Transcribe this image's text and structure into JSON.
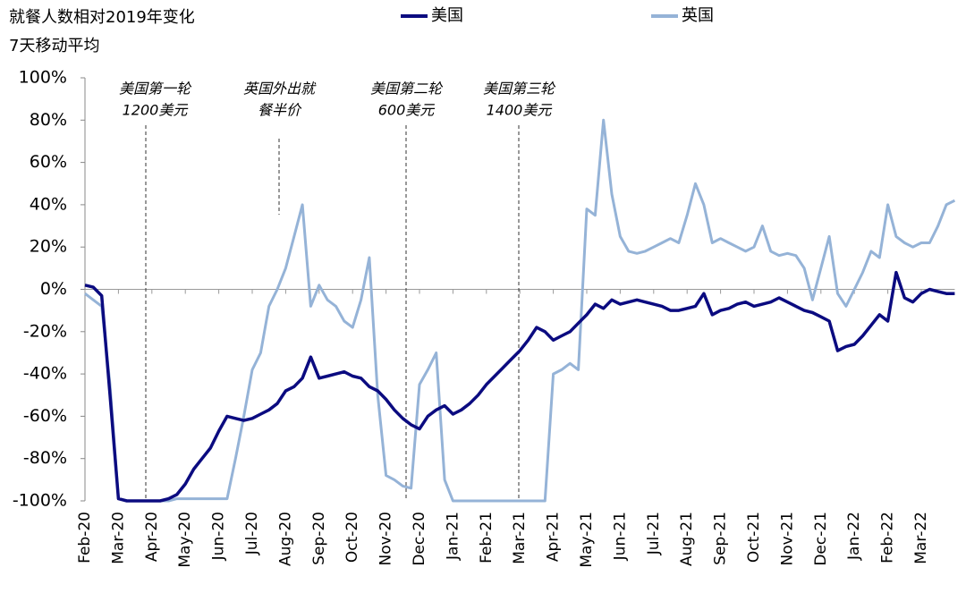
{
  "chart_data": {
    "type": "line",
    "title": "就餐人数相对2019年变化",
    "subtitle": "7天移动平均",
    "categories": [
      "Feb-20",
      null,
      null,
      null,
      "Mar-20",
      null,
      null,
      null,
      "Apr-20",
      null,
      null,
      null,
      "May-20",
      null,
      null,
      null,
      "Jun-20",
      null,
      null,
      null,
      "Jul-20",
      null,
      null,
      null,
      "Aug-20",
      null,
      null,
      null,
      "Sep-20",
      null,
      null,
      null,
      "Oct-20",
      null,
      null,
      null,
      "Nov-20",
      null,
      null,
      null,
      "Dec-20",
      null,
      null,
      null,
      "Jan-21",
      null,
      null,
      null,
      "Feb-21",
      null,
      null,
      null,
      "Mar-21",
      null,
      null,
      null,
      "Apr-21",
      null,
      null,
      null,
      "May-21",
      null,
      null,
      null,
      "Jun-21",
      null,
      null,
      null,
      "Jul-21",
      null,
      null,
      null,
      "Aug-21",
      null,
      null,
      null,
      "Sep-21",
      null,
      null,
      null,
      "Oct-21",
      null,
      null,
      null,
      "Nov-21",
      null,
      null,
      null,
      "Dec-21",
      null,
      null,
      null,
      "Jan-22",
      null,
      null,
      null,
      "Feb-22",
      null,
      null,
      null,
      "Mar-22",
      null,
      null,
      null,
      null
    ],
    "series": [
      {
        "name": "美国",
        "color": "#0b0b80",
        "width": 3.5,
        "values": [
          2,
          1,
          -3,
          -50,
          -99,
          -100,
          -100,
          -100,
          -100,
          -100,
          -99,
          -97,
          -92,
          -85,
          -80,
          -75,
          -67,
          -60,
          -61,
          -62,
          -61,
          -59,
          -57,
          -54,
          -48,
          -46,
          -42,
          -32,
          -42,
          -41,
          -40,
          -39,
          -41,
          -42,
          -46,
          -48,
          -52,
          -57,
          -61,
          -64,
          -66,
          -60,
          -57,
          -55,
          -59,
          -57,
          -54,
          -50,
          -45,
          -41,
          -37,
          -33,
          -29,
          -24,
          -18,
          -20,
          -24,
          -22,
          -20,
          -16,
          -12,
          -7,
          -9,
          -5,
          -7,
          -6,
          -5,
          -6,
          -7,
          -8,
          -10,
          -10,
          -9,
          -8,
          -2,
          -12,
          -10,
          -9,
          -7,
          -6,
          -8,
          -7,
          -6,
          -4,
          -6,
          -8,
          -10,
          -11,
          -13,
          -15,
          -29,
          -27,
          -26,
          -22,
          -17,
          -12,
          -15,
          8,
          -4,
          -6,
          -2,
          0,
          -1,
          -2,
          -2
        ]
      },
      {
        "name": "英国",
        "color": "#95b3d7",
        "width": 3,
        "values": [
          -2,
          -5,
          -8,
          -45,
          -99,
          -100,
          -100,
          -100,
          -100,
          -100,
          -100,
          -99,
          -99,
          -99,
          -99,
          -99,
          -99,
          -99,
          -80,
          -60,
          -38,
          -30,
          -8,
          0,
          10,
          25,
          40,
          -8,
          2,
          -5,
          -8,
          -15,
          -18,
          -5,
          15,
          -50,
          -88,
          -90,
          -93,
          -94,
          -45,
          -38,
          -30,
          -90,
          -100,
          -100,
          -100,
          -100,
          -100,
          -100,
          -100,
          -100,
          -100,
          -100,
          -100,
          -100,
          -40,
          -38,
          -35,
          -38,
          38,
          35,
          80,
          45,
          25,
          18,
          17,
          18,
          20,
          22,
          24,
          22,
          35,
          50,
          40,
          22,
          24,
          22,
          20,
          18,
          20,
          30,
          18,
          16,
          17,
          16,
          10,
          -5,
          10,
          25,
          -2,
          -8,
          0,
          8,
          18,
          15,
          40,
          25,
          22,
          20,
          22,
          22,
          30,
          40,
          42
        ]
      }
    ],
    "ylim": [
      -100,
      100
    ],
    "yticks": [
      {
        "value": -100,
        "label": "-100%"
      },
      {
        "value": -80,
        "label": "-80%"
      },
      {
        "value": -60,
        "label": "-60%"
      },
      {
        "value": -40,
        "label": "-40%"
      },
      {
        "value": -20,
        "label": "-20%"
      },
      {
        "value": 0,
        "label": "0%"
      },
      {
        "value": 20,
        "label": "20%"
      },
      {
        "value": 40,
        "label": "40%"
      },
      {
        "value": 60,
        "label": "60%"
      },
      {
        "value": 80,
        "label": "80%"
      },
      {
        "value": 100,
        "label": "100%"
      }
    ],
    "negative_tick_label_color": "#ff0000",
    "annotations": [
      {
        "lines": [
          "美国第一轮",
          "1200美元"
        ],
        "color": "#0b0b80"
      },
      {
        "lines": [
          "英国外出就",
          "餐半价"
        ],
        "color": "#95b3d7"
      },
      {
        "lines": [
          "美国第二轮",
          "600美元"
        ],
        "color": "#0b0b80"
      },
      {
        "lines": [
          "美国第三轮",
          "1400美元"
        ],
        "color": "#0b0b80"
      }
    ]
  }
}
